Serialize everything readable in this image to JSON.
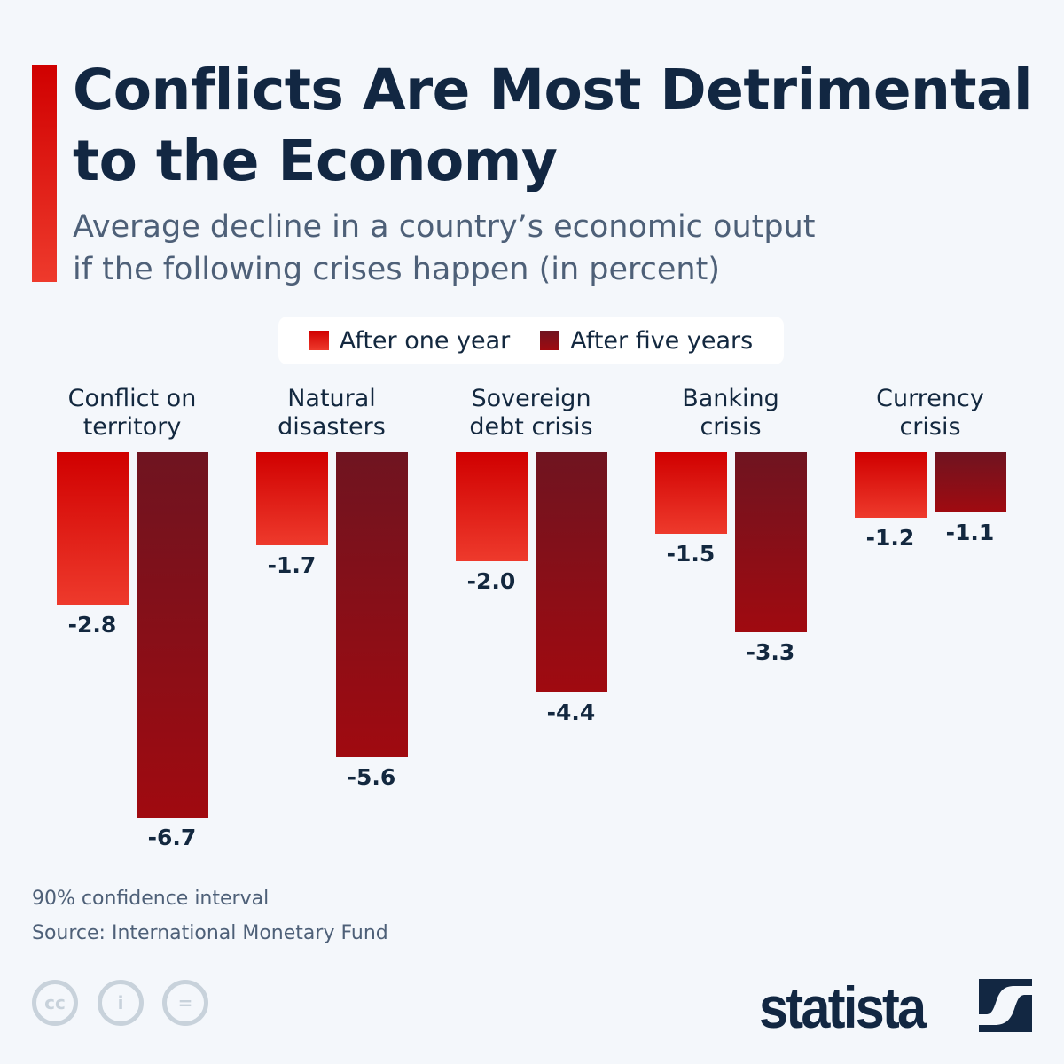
{
  "title_line1": "Conflicts Are Most Detrimental",
  "title_line2": "to the Economy",
  "subtitle_line1": "Average decline in a country’s economic output",
  "subtitle_line2": "if the following crises happen (in percent)",
  "chart_data": {
    "type": "bar",
    "categories": [
      "Conflict on\nterritory",
      "Natural\ndisasters",
      "Sovereign\ndebt crisis",
      "Banking\ncrisis",
      "Currency\ncrisis"
    ],
    "series": [
      {
        "name": "After one year",
        "values": [
          -2.8,
          -1.7,
          -2.0,
          -1.5,
          -1.2
        ],
        "color": "#e02418"
      },
      {
        "name": "After five years",
        "values": [
          -6.7,
          -5.6,
          -4.4,
          -3.3,
          -1.1
        ],
        "color": "#8a0f1a"
      }
    ],
    "value_labels": [
      [
        "-2.8",
        "-1.7",
        "-2.0",
        "-1.5",
        "-1.2"
      ],
      [
        "-6.7",
        "-5.6",
        "-4.4",
        "-3.3",
        "-1.1"
      ]
    ],
    "ylim": [
      -6.7,
      0
    ],
    "grid": false,
    "legend": "top-center"
  },
  "notes": [
    "90% confidence interval",
    "Source: International Monetary Fund"
  ],
  "license_icons": [
    "cc-icon",
    "attribution-icon",
    "no-derivatives-icon"
  ],
  "brand": "statista"
}
